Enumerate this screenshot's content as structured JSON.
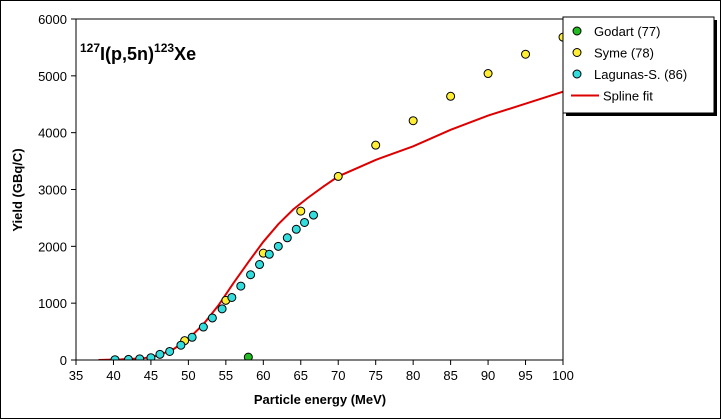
{
  "chart_data": {
    "type": "scatter",
    "annotation": {
      "sup1": "127",
      "base1": "I(p,5n)",
      "sup2": "123",
      "base2": "Xe"
    },
    "xlabel": "Particle energy (MeV)",
    "ylabel": "Yield (GBq/C)",
    "xlim": [
      35,
      100
    ],
    "ylim": [
      0,
      6000
    ],
    "xticks": [
      "35",
      "40",
      "45",
      "50",
      "55",
      "60",
      "65",
      "70",
      "75",
      "80",
      "85",
      "90",
      "95",
      "100"
    ],
    "yticks": [
      "0",
      "1000",
      "2000",
      "3000",
      "4000",
      "5000",
      "6000"
    ],
    "grid": false,
    "legend_position": "top-right",
    "series": [
      {
        "name": "Godart (77)",
        "kind": "points",
        "color": "#22bb22",
        "points": [
          [
            58,
            50
          ]
        ]
      },
      {
        "name": "Syme (78)",
        "kind": "points",
        "color": "#ffee33",
        "points": [
          [
            49.5,
            340
          ],
          [
            55,
            1050
          ],
          [
            60,
            1880
          ],
          [
            65,
            2620
          ],
          [
            70,
            3230
          ],
          [
            75,
            3780
          ],
          [
            80,
            4210
          ],
          [
            85,
            4640
          ],
          [
            90,
            5040
          ],
          [
            95,
            5380
          ],
          [
            100,
            5680
          ]
        ]
      },
      {
        "name": "Lagunas-S. (86)",
        "kind": "points",
        "color": "#33dddd",
        "points": [
          [
            40.2,
            5
          ],
          [
            42,
            10
          ],
          [
            43.5,
            20
          ],
          [
            45,
            40
          ],
          [
            46.2,
            100
          ],
          [
            47.5,
            150
          ],
          [
            49,
            260
          ],
          [
            50.5,
            400
          ],
          [
            52,
            580
          ],
          [
            53.2,
            740
          ],
          [
            54.5,
            900
          ],
          [
            55.8,
            1100
          ],
          [
            57,
            1300
          ],
          [
            58.3,
            1500
          ],
          [
            59.5,
            1680
          ],
          [
            60.8,
            1860
          ],
          [
            62,
            2000
          ],
          [
            63.2,
            2150
          ],
          [
            64.4,
            2300
          ],
          [
            65.5,
            2420
          ],
          [
            66.7,
            2550
          ]
        ]
      },
      {
        "name": "Spline fit",
        "kind": "line",
        "color": "#dd0000",
        "points": [
          [
            38,
            0
          ],
          [
            41,
            10
          ],
          [
            44,
            30
          ],
          [
            46,
            80
          ],
          [
            48,
            190
          ],
          [
            50,
            370
          ],
          [
            52,
            630
          ],
          [
            54,
            960
          ],
          [
            56,
            1350
          ],
          [
            58,
            1720
          ],
          [
            60,
            2080
          ],
          [
            62,
            2390
          ],
          [
            64,
            2650
          ],
          [
            66,
            2860
          ],
          [
            68,
            3050
          ],
          [
            70,
            3230
          ],
          [
            75,
            3520
          ],
          [
            80,
            3760
          ],
          [
            85,
            4050
          ],
          [
            90,
            4300
          ],
          [
            95,
            4510
          ],
          [
            100,
            4720
          ]
        ]
      }
    ]
  }
}
